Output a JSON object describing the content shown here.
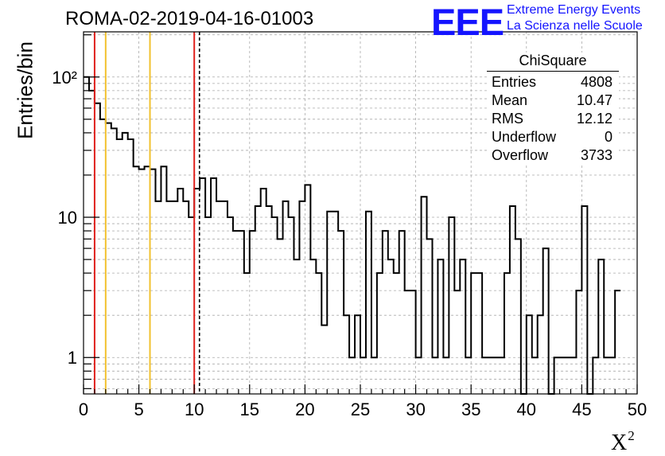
{
  "page": {
    "title": "ROMA-02-2019-04-16-01003",
    "logo_text": "EEE",
    "logo_line1": "Extreme Energy Events",
    "logo_line2": "La Scienza nelle Scuole"
  },
  "stats": {
    "name": "ChiSquare",
    "rows": [
      {
        "label": "Entries",
        "value": "4808"
      },
      {
        "label": "Mean",
        "value": "10.47"
      },
      {
        "label": "RMS",
        "value": "12.12"
      },
      {
        "label": "Underflow",
        "value": "0"
      },
      {
        "label": "Overflow",
        "value": "3733"
      }
    ]
  },
  "chart_data": {
    "type": "histogram",
    "title": "ROMA-02-2019-04-16-01003",
    "xlabel": "X",
    "xlabel_superscript": "2",
    "ylabel": "Entries/bin",
    "xlim": [
      0,
      50
    ],
    "ylim": [
      0.55,
      210
    ],
    "y_scale": "log",
    "grid": true,
    "bin_width": 0.5,
    "x_ticks": [
      0,
      5,
      10,
      15,
      20,
      25,
      30,
      35,
      40,
      45,
      50
    ],
    "x_tick_labels": [
      "0",
      "5",
      "10",
      "15",
      "20",
      "25",
      "30",
      "35",
      "40",
      "45",
      "50"
    ],
    "y_ticks": [
      1,
      10,
      100
    ],
    "y_tick_labels": [
      "1",
      "10",
      "10²"
    ],
    "values": [
      100,
      80,
      65,
      50,
      47,
      43,
      36,
      40,
      36,
      23,
      22,
      23,
      22,
      13,
      23,
      13,
      13,
      16,
      13,
      10,
      16,
      19,
      10,
      19,
      13,
      13,
      10,
      8,
      8,
      4,
      8,
      12,
      16,
      12,
      10,
      7,
      13,
      10,
      5,
      13,
      17,
      5,
      4,
      1.7,
      11,
      11,
      8,
      2,
      1,
      2,
      1,
      11,
      1,
      4,
      8,
      5,
      4,
      8,
      3,
      3,
      1,
      14,
      7,
      1,
      5,
      1,
      10,
      3,
      5,
      1,
      4,
      4,
      1,
      1,
      1,
      1,
      4,
      12,
      7,
      0,
      2,
      1,
      2,
      6,
      0,
      1,
      1,
      1,
      1,
      3,
      12,
      0,
      1,
      5,
      1,
      1,
      3
    ],
    "lines": [
      {
        "x": 1,
        "color": "#e0201c",
        "style": "solid"
      },
      {
        "x": 2,
        "color": "#f2c12e",
        "style": "solid"
      },
      {
        "x": 6,
        "color": "#f2c12e",
        "style": "solid"
      },
      {
        "x": 10,
        "color": "#e0201c",
        "style": "solid"
      },
      {
        "x": 10.47,
        "color": "#000000",
        "style": "dashed"
      }
    ]
  }
}
